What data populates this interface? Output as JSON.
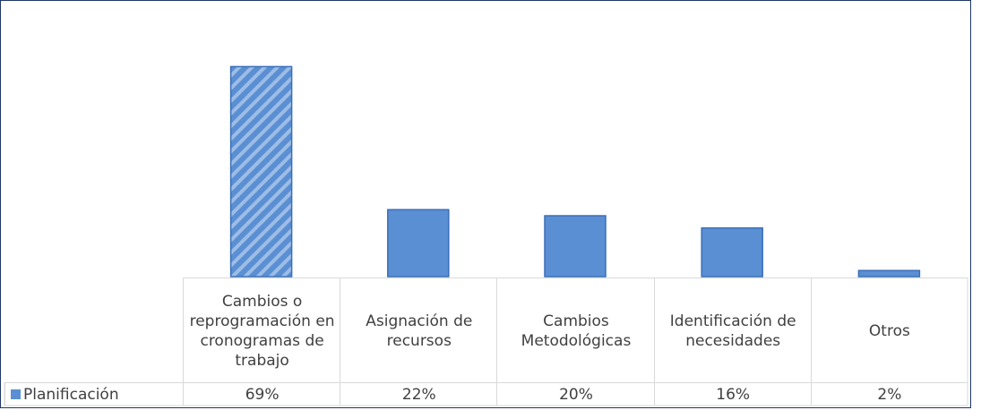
{
  "chart_data": {
    "type": "bar",
    "categories": [
      "Cambios o reprogramación en cronogramas de trabajo",
      "Asignación de recursos",
      "Cambios Metodológicas",
      "Identificación de necesidades",
      "Otros"
    ],
    "series": [
      {
        "name": "Planificación",
        "color": "#5b8fd3",
        "values": [
          69,
          22,
          20,
          16,
          2
        ],
        "value_labels": [
          "69%",
          "22%",
          "20%",
          "16%",
          "2%"
        ]
      }
    ],
    "data_table": true
  }
}
